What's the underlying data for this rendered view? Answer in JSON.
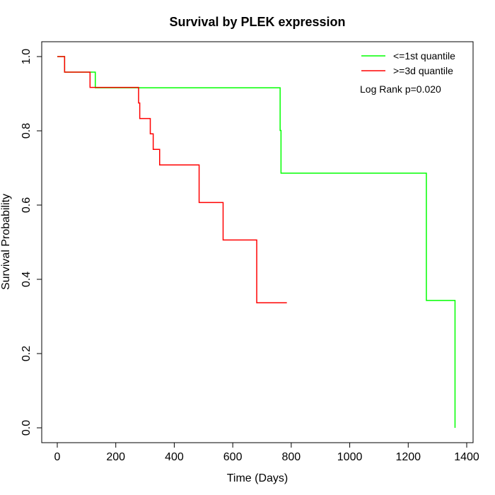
{
  "chart_data": {
    "type": "line",
    "step": true,
    "title": "Survival by PLEK expression",
    "xlabel": "Time (Days)",
    "ylabel": "Survival Probability",
    "xlim": [
      0,
      1400
    ],
    "ylim": [
      0.0,
      1.0
    ],
    "x_ticks": [
      0,
      200,
      400,
      600,
      800,
      1000,
      1200,
      1400
    ],
    "y_ticks": [
      0.0,
      0.2,
      0.4,
      0.6,
      0.8,
      1.0
    ],
    "x_tick_labels": [
      "0",
      "200",
      "400",
      "600",
      "800",
      "1000",
      "1200",
      "1400"
    ],
    "y_tick_labels": [
      "0.0",
      "0.2",
      "0.4",
      "0.6",
      "0.8",
      "1.0"
    ],
    "annotation": "Log Rank p=0.020",
    "legend_position": "top-right",
    "series": [
      {
        "name": "<=1st quantile",
        "color": "#00ff00",
        "times": [
          0,
          25,
          130,
          762,
          765,
          1262,
          1360
        ],
        "survival": [
          1.0,
          0.958,
          0.916,
          0.801,
          0.686,
          0.343,
          0.0
        ]
      },
      {
        "name": ">=3d quantile",
        "color": "#ff0000",
        "times": [
          0,
          25,
          112,
          278,
          282,
          318,
          328,
          350,
          485,
          567,
          682
        ],
        "survival": [
          1.0,
          0.958,
          0.917,
          0.875,
          0.833,
          0.792,
          0.75,
          0.708,
          0.607,
          0.506,
          0.337
        ],
        "end_time": 785
      }
    ]
  }
}
